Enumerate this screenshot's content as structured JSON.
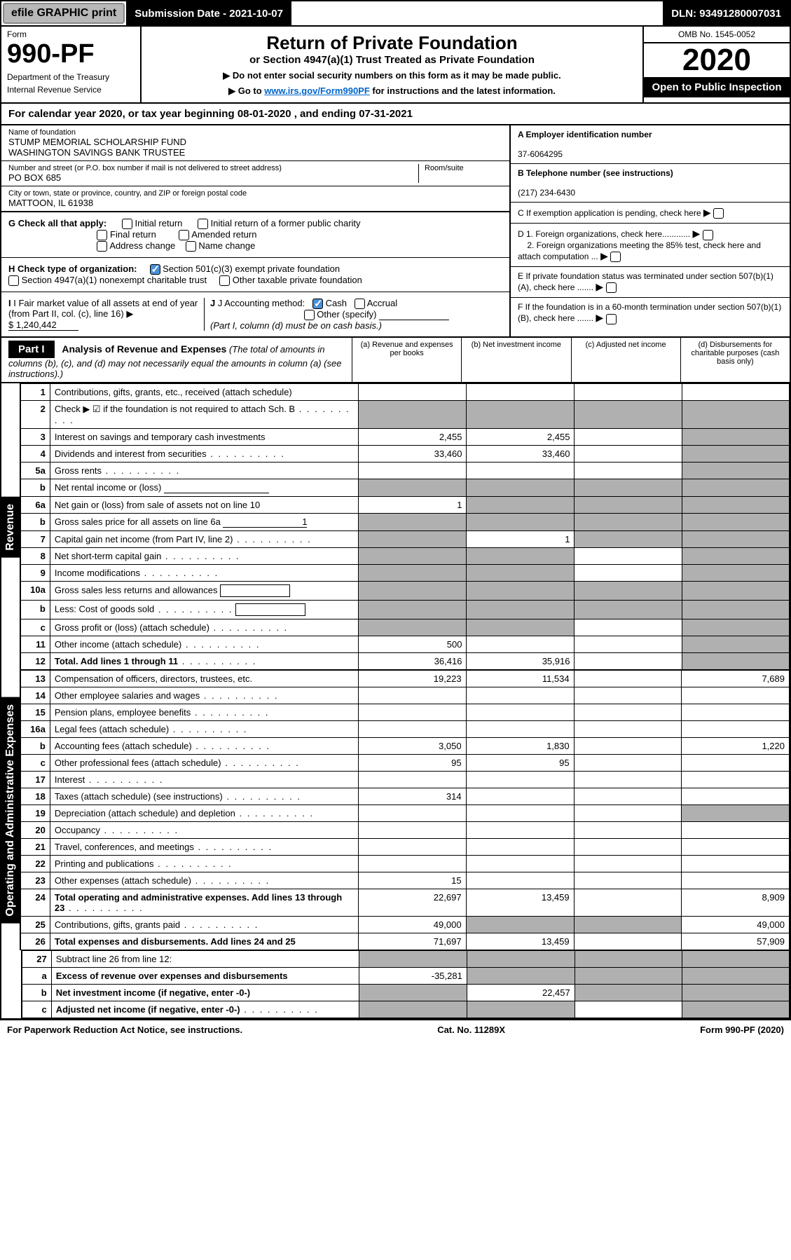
{
  "topbar": {
    "efile": "efile GRAPHIC print",
    "submission": "Submission Date - 2021-10-07",
    "dln": "DLN: 93491280007031"
  },
  "header": {
    "form_label": "Form",
    "form_number": "990-PF",
    "dept1": "Department of the Treasury",
    "dept2": "Internal Revenue Service",
    "title": "Return of Private Foundation",
    "subtitle": "or Section 4947(a)(1) Trust Treated as Private Foundation",
    "instruct1": "▶ Do not enter social security numbers on this form as it may be made public.",
    "instruct2_prefix": "▶ Go to ",
    "instruct2_link": "www.irs.gov/Form990PF",
    "instruct2_suffix": " for instructions and the latest information.",
    "omb": "OMB No. 1545-0052",
    "year": "2020",
    "open_public": "Open to Public Inspection"
  },
  "calendar": {
    "text_prefix": "For calendar year 2020, or tax year beginning ",
    "begin": "08-01-2020",
    "text_mid": " , and ending ",
    "end": "07-31-2021"
  },
  "foundation": {
    "name_label": "Name of foundation",
    "name1": "STUMP MEMORIAL SCHOLARSHIP FUND",
    "name2": "WASHINGTON SAVINGS BANK TRUSTEE",
    "address_label": "Number and street (or P.O. box number if mail is not delivered to street address)",
    "room_label": "Room/suite",
    "address": "PO BOX 685",
    "city_label": "City or town, state or province, country, and ZIP or foreign postal code",
    "city": "MATTOON, IL  61938"
  },
  "right_info": {
    "a_label": "A Employer identification number",
    "a_val": "37-6064295",
    "b_label": "B Telephone number (see instructions)",
    "b_val": "(217) 234-6430",
    "c_label": "C If exemption application is pending, check here",
    "d1": "D 1. Foreign organizations, check here............",
    "d2": "2. Foreign organizations meeting the 85% test, check here and attach computation ...",
    "e": "E  If private foundation status was terminated under section 507(b)(1)(A), check here .......",
    "f": "F  If the foundation is in a 60-month termination under section 507(b)(1)(B), check here ......."
  },
  "checks": {
    "g_label": "G Check all that apply:",
    "g_initial": "Initial return",
    "g_initial_former": "Initial return of a former public charity",
    "g_final": "Final return",
    "g_amended": "Amended return",
    "g_address": "Address change",
    "g_name": "Name change",
    "h_label": "H Check type of organization:",
    "h_501c3": "Section 501(c)(3) exempt private foundation",
    "h_4947": "Section 4947(a)(1) nonexempt charitable trust",
    "h_other": "Other taxable private foundation",
    "i_label": "I Fair market value of all assets at end of year (from Part II, col. (c), line 16)",
    "i_val": "$  1,240,442",
    "j_label": "J Accounting method:",
    "j_cash": "Cash",
    "j_accrual": "Accrual",
    "j_other": "Other (specify)",
    "j_note": "(Part I, column (d) must be on cash basis.)"
  },
  "part1": {
    "label": "Part I",
    "title": "Analysis of Revenue and Expenses",
    "title_note": " (The total of amounts in columns (b), (c), and (d) may not necessarily equal the amounts in column (a) (see instructions).)",
    "col_a": "(a)   Revenue and expenses per books",
    "col_b": "(b)   Net investment income",
    "col_c": "(c)   Adjusted net income",
    "col_d": "(d)   Disbursements for charitable purposes (cash basis only)"
  },
  "side_labels": {
    "revenue": "Revenue",
    "expenses": "Operating and Administrative Expenses"
  },
  "rows": [
    {
      "num": "1",
      "label": "Contributions, gifts, grants, etc., received (attach schedule)",
      "a": "",
      "b": "",
      "c": "",
      "d": "",
      "shade_c": false,
      "shade_d": false
    },
    {
      "num": "2",
      "label": "Check ▶ ☑ if the foundation is not required to attach Sch. B",
      "a": "",
      "b": "",
      "c": "",
      "d": "",
      "shade_a": true,
      "shade_b": true,
      "shade_c": true,
      "shade_d": true,
      "dots": true
    },
    {
      "num": "3",
      "label": "Interest on savings and temporary cash investments",
      "a": "2,455",
      "b": "2,455",
      "c": "",
      "d": "",
      "shade_d": true
    },
    {
      "num": "4",
      "label": "Dividends and interest from securities",
      "a": "33,460",
      "b": "33,460",
      "c": "",
      "d": "",
      "shade_d": true,
      "dots": true
    },
    {
      "num": "5a",
      "label": "Gross rents",
      "a": "",
      "b": "",
      "c": "",
      "d": "",
      "shade_d": true,
      "dots": true
    },
    {
      "num": "b",
      "label": "Net rental income or (loss)",
      "a": "",
      "b": "",
      "c": "",
      "d": "",
      "shade_a": true,
      "shade_b": true,
      "shade_c": true,
      "shade_d": true,
      "underline": true
    },
    {
      "num": "6a",
      "label": "Net gain or (loss) from sale of assets not on line 10",
      "a": "1",
      "b": "",
      "c": "",
      "d": "",
      "shade_b": true,
      "shade_c": true,
      "shade_d": true
    },
    {
      "num": "b",
      "label": "Gross sales price for all assets on line 6a",
      "a": "",
      "b": "",
      "c": "",
      "d": "",
      "shade_a": true,
      "shade_b": true,
      "shade_c": true,
      "shade_d": true,
      "inline_val": "1"
    },
    {
      "num": "7",
      "label": "Capital gain net income (from Part IV, line 2)",
      "a": "",
      "b": "1",
      "c": "",
      "d": "",
      "shade_a": true,
      "shade_c": true,
      "shade_d": true,
      "dots": true
    },
    {
      "num": "8",
      "label": "Net short-term capital gain",
      "a": "",
      "b": "",
      "c": "",
      "d": "",
      "shade_a": true,
      "shade_b": true,
      "shade_d": true,
      "dots": true
    },
    {
      "num": "9",
      "label": "Income modifications",
      "a": "",
      "b": "",
      "c": "",
      "d": "",
      "shade_a": true,
      "shade_b": true,
      "shade_d": true,
      "dots": true
    },
    {
      "num": "10a",
      "label": "Gross sales less returns and allowances",
      "a": "",
      "b": "",
      "c": "",
      "d": "",
      "shade_a": true,
      "shade_b": true,
      "shade_c": true,
      "shade_d": true,
      "box": true
    },
    {
      "num": "b",
      "label": "Less: Cost of goods sold",
      "a": "",
      "b": "",
      "c": "",
      "d": "",
      "shade_a": true,
      "shade_b": true,
      "shade_c": true,
      "shade_d": true,
      "box": true,
      "dots": true
    },
    {
      "num": "c",
      "label": "Gross profit or (loss) (attach schedule)",
      "a": "",
      "b": "",
      "c": "",
      "d": "",
      "shade_a": true,
      "shade_b": true,
      "shade_d": true,
      "dots": true
    },
    {
      "num": "11",
      "label": "Other income (attach schedule)",
      "a": "500",
      "b": "",
      "c": "",
      "d": "",
      "shade_d": true,
      "dots": true
    },
    {
      "num": "12",
      "label": "Total. Add lines 1 through 11",
      "a": "36,416",
      "b": "35,916",
      "c": "",
      "d": "",
      "shade_d": true,
      "bold": true,
      "dots": true
    }
  ],
  "exp_rows": [
    {
      "num": "13",
      "label": "Compensation of officers, directors, trustees, etc.",
      "a": "19,223",
      "b": "11,534",
      "c": "",
      "d": "7,689"
    },
    {
      "num": "14",
      "label": "Other employee salaries and wages",
      "a": "",
      "b": "",
      "c": "",
      "d": "",
      "dots": true
    },
    {
      "num": "15",
      "label": "Pension plans, employee benefits",
      "a": "",
      "b": "",
      "c": "",
      "d": "",
      "dots": true
    },
    {
      "num": "16a",
      "label": "Legal fees (attach schedule)",
      "a": "",
      "b": "",
      "c": "",
      "d": "",
      "dots": true
    },
    {
      "num": "b",
      "label": "Accounting fees (attach schedule)",
      "a": "3,050",
      "b": "1,830",
      "c": "",
      "d": "1,220",
      "dots": true
    },
    {
      "num": "c",
      "label": "Other professional fees (attach schedule)",
      "a": "95",
      "b": "95",
      "c": "",
      "d": "",
      "dots": true
    },
    {
      "num": "17",
      "label": "Interest",
      "a": "",
      "b": "",
      "c": "",
      "d": "",
      "dots": true
    },
    {
      "num": "18",
      "label": "Taxes (attach schedule) (see instructions)",
      "a": "314",
      "b": "",
      "c": "",
      "d": "",
      "dots": true
    },
    {
      "num": "19",
      "label": "Depreciation (attach schedule) and depletion",
      "a": "",
      "b": "",
      "c": "",
      "d": "",
      "shade_d": true,
      "dots": true
    },
    {
      "num": "20",
      "label": "Occupancy",
      "a": "",
      "b": "",
      "c": "",
      "d": "",
      "dots": true
    },
    {
      "num": "21",
      "label": "Travel, conferences, and meetings",
      "a": "",
      "b": "",
      "c": "",
      "d": "",
      "dots": true
    },
    {
      "num": "22",
      "label": "Printing and publications",
      "a": "",
      "b": "",
      "c": "",
      "d": "",
      "dots": true
    },
    {
      "num": "23",
      "label": "Other expenses (attach schedule)",
      "a": "15",
      "b": "",
      "c": "",
      "d": "",
      "dots": true
    },
    {
      "num": "24",
      "label": "Total operating and administrative expenses. Add lines 13 through 23",
      "a": "22,697",
      "b": "13,459",
      "c": "",
      "d": "8,909",
      "bold": true,
      "dots": true,
      "multiline": true
    },
    {
      "num": "25",
      "label": "Contributions, gifts, grants paid",
      "a": "49,000",
      "b": "",
      "c": "",
      "d": "49,000",
      "shade_b": true,
      "shade_c": true,
      "dots": true
    },
    {
      "num": "26",
      "label": "Total expenses and disbursements. Add lines 24 and 25",
      "a": "71,697",
      "b": "13,459",
      "c": "",
      "d": "57,909",
      "bold": true
    }
  ],
  "bottom_rows": [
    {
      "num": "27",
      "label": "Subtract line 26 from line 12:",
      "a": "",
      "b": "",
      "c": "",
      "d": "",
      "shade_a": true,
      "shade_b": true,
      "shade_c": true,
      "shade_d": true
    },
    {
      "num": "a",
      "label": "Excess of revenue over expenses and disbursements",
      "a": "-35,281",
      "b": "",
      "c": "",
      "d": "",
      "shade_b": true,
      "shade_c": true,
      "shade_d": true,
      "bold": true
    },
    {
      "num": "b",
      "label": "Net investment income (if negative, enter -0-)",
      "a": "",
      "b": "22,457",
      "c": "",
      "d": "",
      "shade_a": true,
      "shade_c": true,
      "shade_d": true,
      "bold": true
    },
    {
      "num": "c",
      "label": "Adjusted net income (if negative, enter -0-)",
      "a": "",
      "b": "",
      "c": "",
      "d": "",
      "shade_a": true,
      "shade_b": true,
      "shade_d": true,
      "bold": true,
      "dots": true
    }
  ],
  "footer": {
    "left": "For Paperwork Reduction Act Notice, see instructions.",
    "mid": "Cat. No. 11289X",
    "right": "Form 990-PF (2020)"
  }
}
